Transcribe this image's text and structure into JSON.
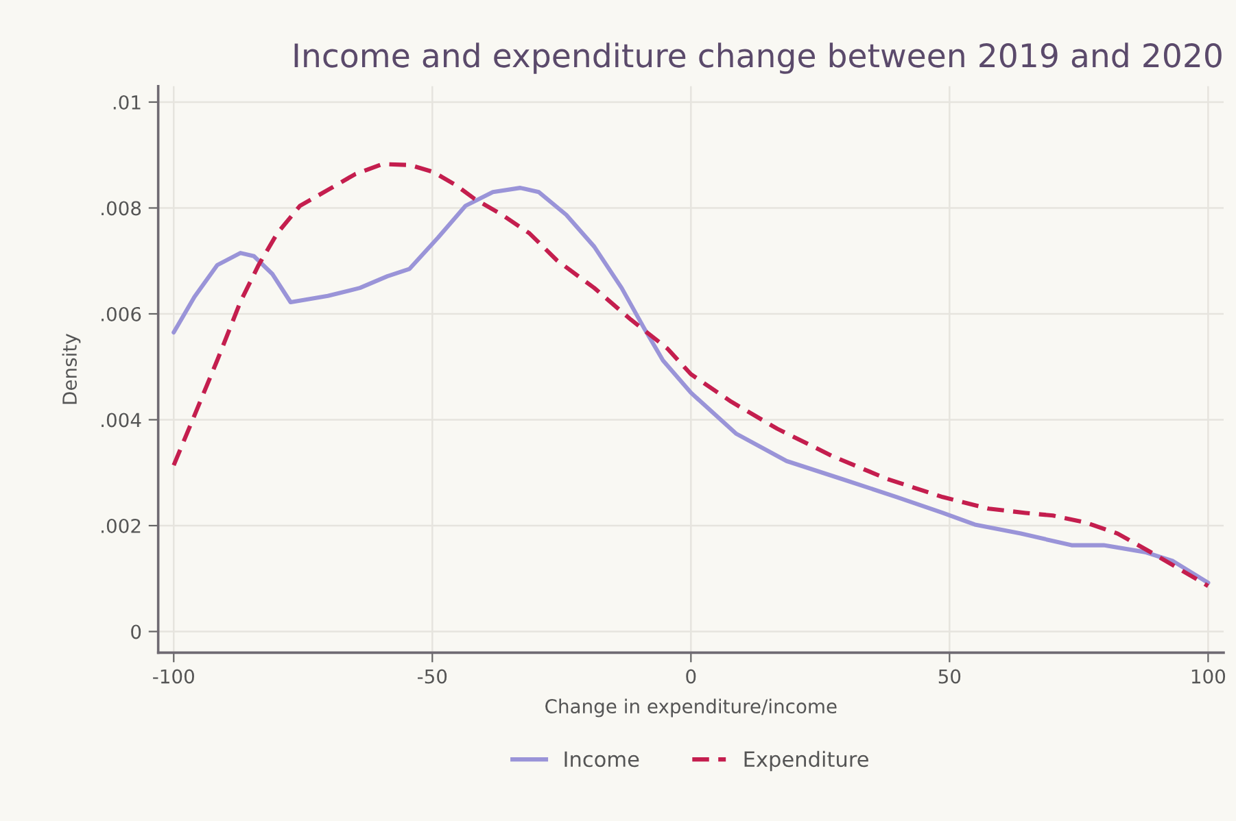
{
  "chart_data": {
    "type": "line",
    "title": "Income and expenditure change between 2019 and 2020",
    "xlabel": "Change in expenditure/income",
    "ylabel": "Density",
    "xlim": [
      -103,
      103
    ],
    "ylim": [
      -0.0004,
      0.0103
    ],
    "xticks": [
      -100,
      -50,
      0,
      50,
      100
    ],
    "yticks": [
      {
        "value": 0,
        "label": "0"
      },
      {
        "value": 0.002,
        "label": ".002"
      },
      {
        "value": 0.004,
        "label": ".004"
      },
      {
        "value": 0.006,
        "label": ".006"
      },
      {
        "value": 0.008,
        "label": ".008"
      },
      {
        "value": 0.01,
        "label": ".01"
      }
    ],
    "grid": true,
    "legend": "bottom",
    "series": [
      {
        "name": "Income",
        "color": "#9a94d8",
        "line_style": "solid",
        "x": [
          -100,
          -96,
          -91.6,
          -87.1,
          -84.5,
          -80.9,
          -77.4,
          -70.2,
          -64.0,
          -58.7,
          -54.4,
          -48.9,
          -43.6,
          -38.3,
          -33.0,
          -29.4,
          -24.1,
          -18.7,
          -13.4,
          -9.0,
          -5.4,
          0,
          8.7,
          18.5,
          29.2,
          39.8,
          48.7,
          54.9,
          63.8,
          73.6,
          79.8,
          87.8,
          93.2,
          100
        ],
        "values": [
          0.00565,
          0.00632,
          0.00692,
          0.00715,
          0.00709,
          0.00675,
          0.00622,
          0.00634,
          0.00649,
          0.00671,
          0.00685,
          0.00744,
          0.00804,
          0.0083,
          0.00838,
          0.0083,
          0.00787,
          0.00727,
          0.00649,
          0.00572,
          0.00512,
          0.00451,
          0.00374,
          0.00322,
          0.00288,
          0.00254,
          0.00224,
          0.00202,
          0.00185,
          0.00163,
          0.00163,
          0.0015,
          0.00133,
          0.00092
        ]
      },
      {
        "name": "Expenditure",
        "color": "#c41e4e",
        "line_style": "dashed",
        "x": [
          -100,
          -96,
          -91.6,
          -87.1,
          -83.6,
          -80.0,
          -75.6,
          -70.2,
          -64.9,
          -59.6,
          -54.3,
          -49.8,
          -45.4,
          -41.8,
          -36.5,
          -31.2,
          -25.9,
          -18.7,
          -11.6,
          -4.5,
          0,
          7.8,
          16.7,
          27.4,
          38.0,
          48.7,
          57.6,
          64.7,
          70.0,
          76.3,
          82.5,
          89.6,
          100
        ],
        "values": [
          0.00314,
          0.00408,
          0.00512,
          0.00623,
          0.00692,
          0.00752,
          0.00804,
          0.00834,
          0.00864,
          0.00883,
          0.00881,
          0.00868,
          0.00843,
          0.00817,
          0.00787,
          0.00752,
          0.00701,
          0.00649,
          0.00589,
          0.00534,
          0.00486,
          0.00434,
          0.00383,
          0.00331,
          0.00288,
          0.00254,
          0.00232,
          0.00224,
          0.00219,
          0.00206,
          0.00185,
          0.00146,
          0.00086
        ]
      }
    ]
  }
}
